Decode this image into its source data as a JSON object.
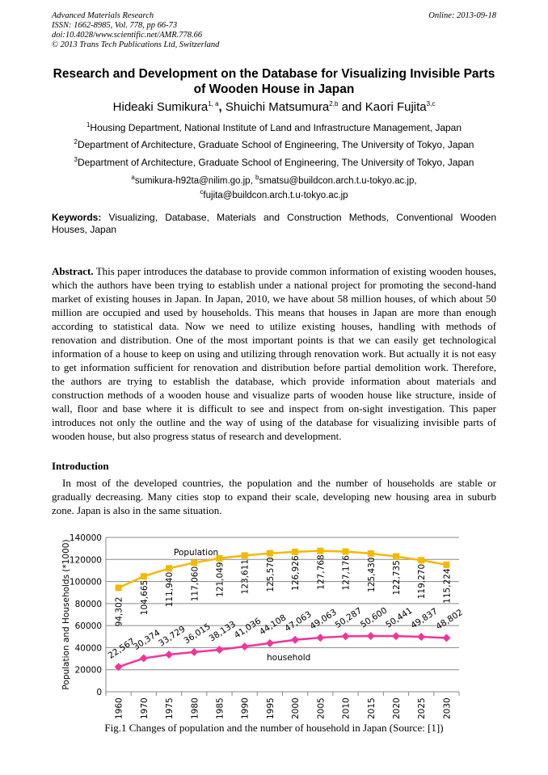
{
  "header": {
    "journal": "Advanced Materials Research",
    "issn": "ISSN: 1662-8985, Vol. 778, pp 66-73",
    "doi": "doi:10.4028/www.scientific.net/AMR.778.66",
    "copyright": "© 2013 Trans Tech Publications Ltd, Switzerland",
    "online": "Online: 2013-09-18"
  },
  "title": "Research and Development on the Database for Visualizing Invisible Parts of Wooden House in Japan",
  "authors": [
    {
      "name": "Hideaki Sumikura",
      "sup": "1, a"
    },
    {
      "sep": ", ",
      "name": "Shuichi Matsumura",
      "sup": "2,b"
    },
    {
      "sep": " and ",
      "name": "Kaori Fujita",
      "sup": "3,c"
    }
  ],
  "affiliations": [
    {
      "sup": "1",
      "text": "Housing Department, National Institute of Land and Infrastructure Management, Japan"
    },
    {
      "sup": "2",
      "text": "Department of Architecture, Graduate School of Engineering, The University of Tokyo, Japan"
    },
    {
      "sup": "3",
      "text": "Department of Architecture, Graduate School of Engineering, The University of Tokyo, Japan"
    }
  ],
  "emails": {
    "a": "sumikura-h92ta@nilim.go.jp,",
    "b": "smatsu@buildcon.arch.t.u-tokyo.ac.jp,",
    "c": "fujita@buildcon.arch.t.u-tokyo.ac.jp"
  },
  "keywords": {
    "label": "Keywords:",
    "text": " Visualizing, Database, Materials and Construction Methods, Conventional Wooden Houses, Japan"
  },
  "abstract": {
    "label": "Abstract.",
    "text": " This paper introduces the database to provide common information of existing wooden houses, which the authors have been trying to establish under a national project for promoting the second-hand market of existing houses in Japan. In Japan, 2010, we have about 58 million houses, of which about 50 million are occupied and used by households. This means that houses in Japan are more than enough according to statistical data. Now we need to utilize existing houses, handling with methods of renovation and distribution. One of the most important points is that we can easily get technological information of a house to keep on using and utilizing through renovation work. But actually it is not easy to get information sufficient for renovation and distribution before partial demolition work. Therefore, the authors are trying to establish the database, which provide information about materials and construction methods of a wooden house and visualize parts of wooden house like structure, inside of wall, floor and base where it is difficult to see and inspect from on-sight investigation. This paper introduces not only the outline and the way of using of the database for visualizing invisible parts of wooden house, but also progress status of research and development."
  },
  "introduction": {
    "heading": "Introduction",
    "text": "In most of the developed countries, the population and the number of households are stable or gradually decreasing. Many cities stop to expand their scale, developing new housing area in suburb zone. Japan is also in the same situation."
  },
  "chart_data": {
    "type": "line",
    "ylabel": "Population  and  Households (*1000)",
    "ylim": [
      0,
      140000
    ],
    "yticks": [
      "0",
      "20000",
      "40000",
      "60000",
      "80000",
      "100000",
      "120000",
      "140000"
    ],
    "grid": true,
    "categories": [
      "1960",
      "1970",
      "1975",
      "1980",
      "1985",
      "1990",
      "1995",
      "2000",
      "2005",
      "2010",
      "2015",
      "2020",
      "2025",
      "2030"
    ],
    "series": [
      {
        "name": "Population",
        "color": "#f5b800",
        "values": [
          94302,
          104665,
          111940,
          117060,
          121049,
          123611,
          125570,
          126926,
          127768,
          127176,
          125430,
          122735,
          119270,
          115224
        ],
        "labels": [
          "94,302",
          "104,665",
          "111,940",
          "117,060",
          "121,049",
          "123,611",
          "125,570",
          "126,926",
          "127,768",
          "127,176",
          "125,430",
          "122,735",
          "119,270",
          "115,224"
        ]
      },
      {
        "name": "household",
        "color": "#f0359a",
        "values": [
          22567,
          30374,
          33729,
          36015,
          38133,
          41036,
          44108,
          47063,
          49063,
          50287,
          50600,
          50441,
          49837,
          48802
        ],
        "labels": [
          "22,567",
          "30,374",
          "33,729",
          "36,015",
          "38,133",
          "41,036",
          "44,108",
          "47,063",
          "49,063",
          "50,287",
          "50,600",
          "50,441",
          "49,837",
          "48,802"
        ]
      }
    ],
    "caption": "Fig.1 Changes of population and the number of household in Japan (Source: [1])"
  }
}
